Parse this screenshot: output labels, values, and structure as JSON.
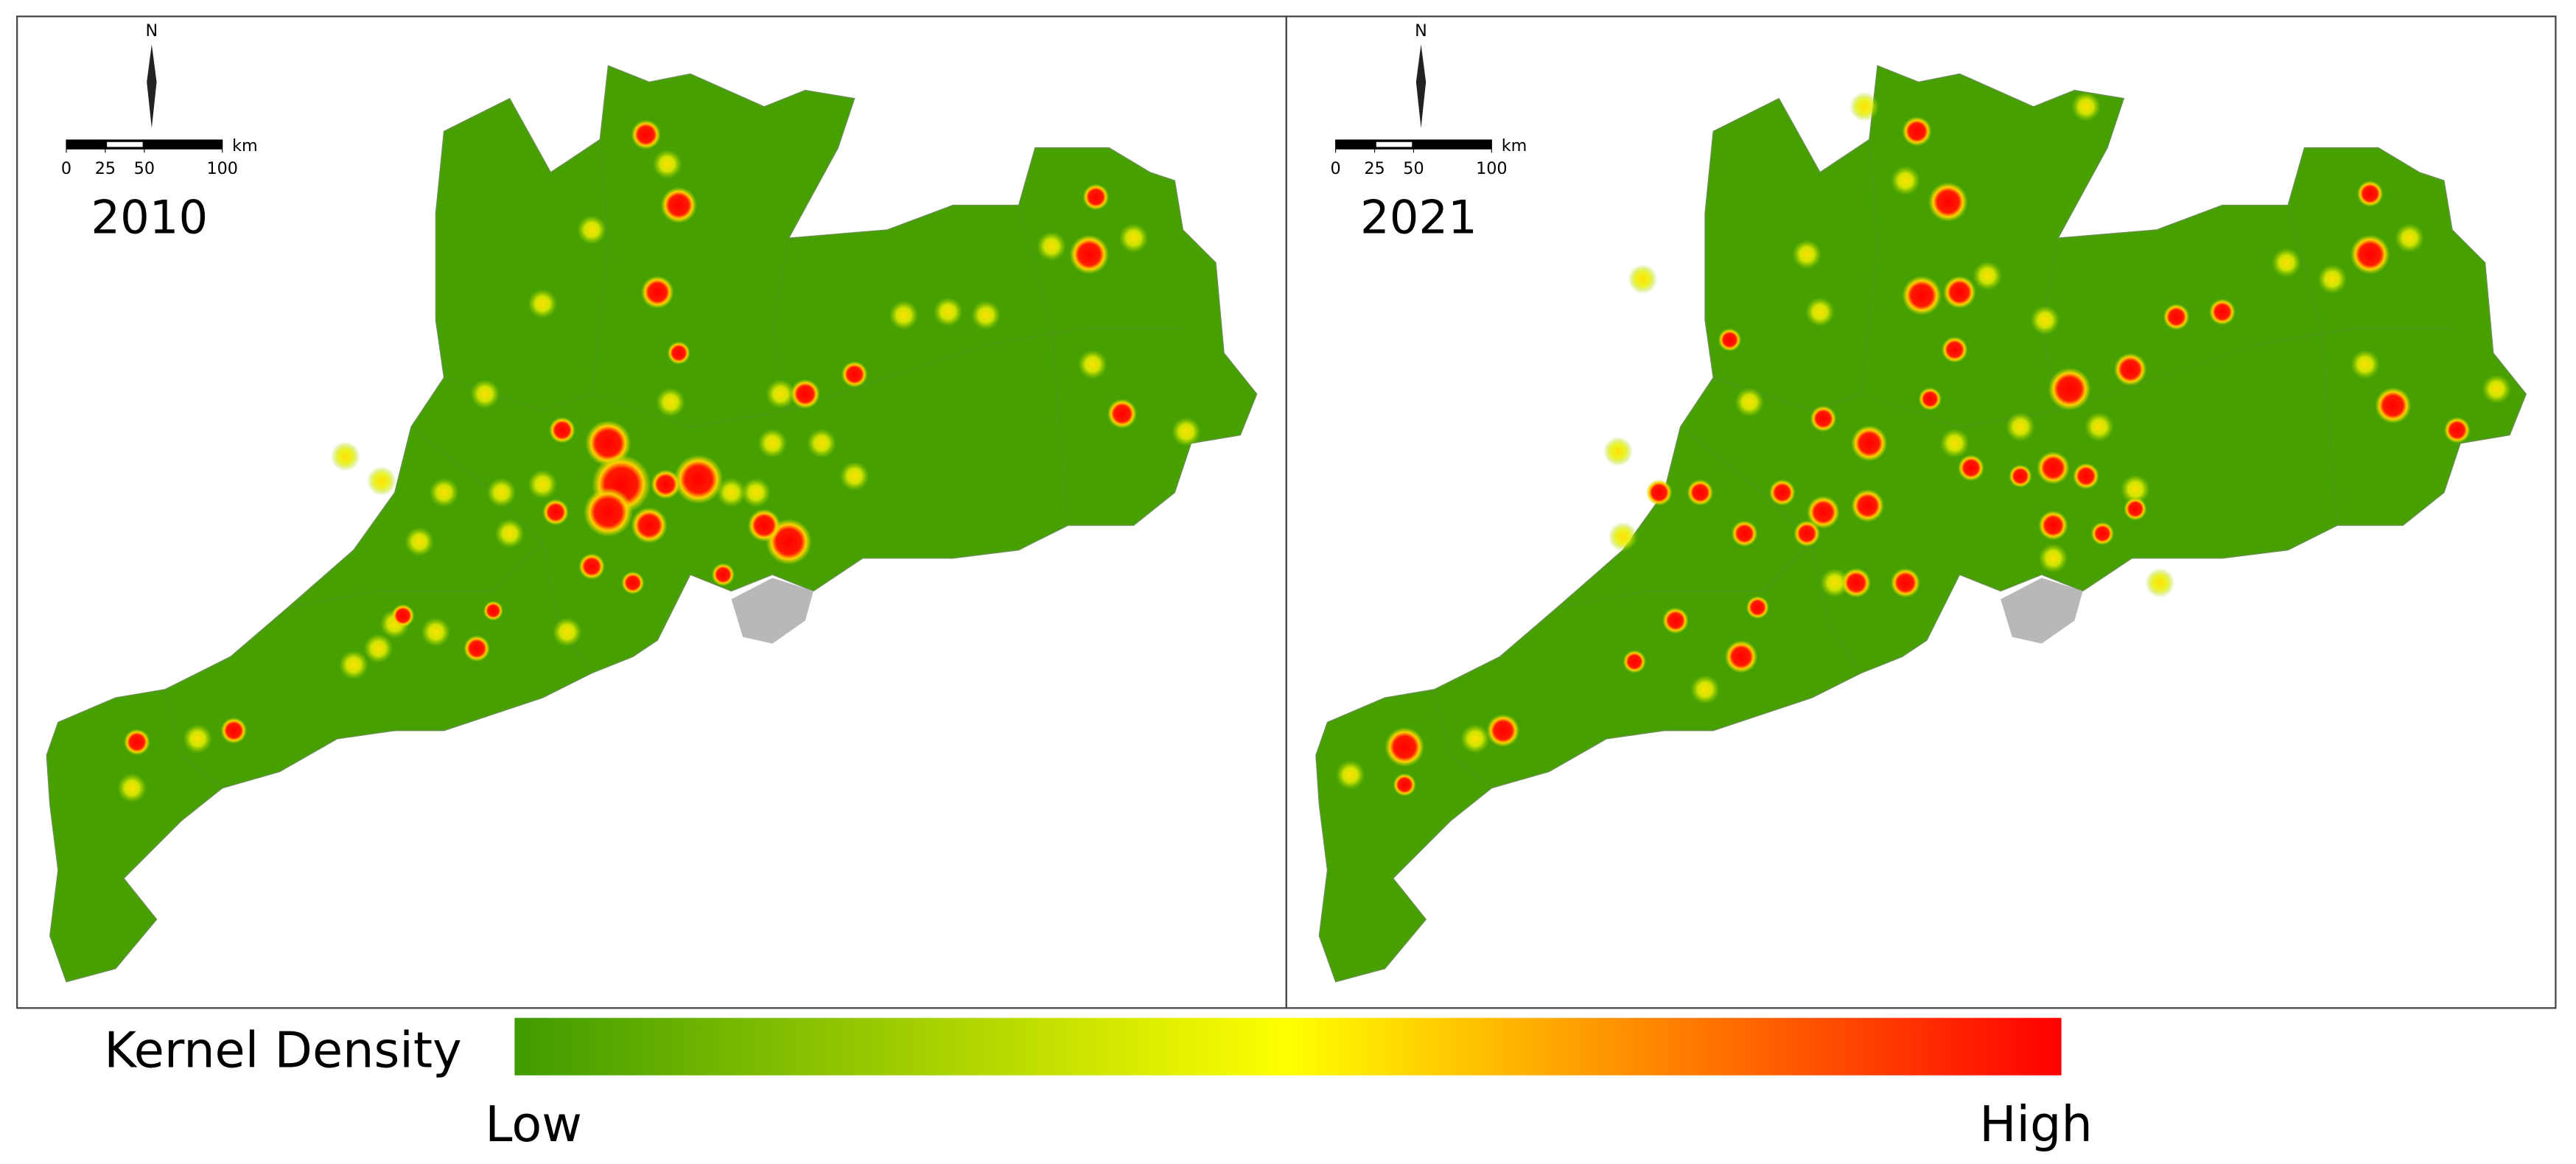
{
  "panels": [
    {
      "year": "2010",
      "north": "N",
      "unit": "km",
      "scale_ticks": [
        0,
        25,
        50,
        100
      ]
    },
    {
      "year": "2021",
      "north": "N",
      "unit": "km",
      "scale_ticks": [
        0,
        25,
        50,
        100
      ]
    }
  ],
  "legend": {
    "title": "Kernel Density",
    "low": "Low",
    "high": "High",
    "colors": [
      "#3f9b00",
      "#ffff00",
      "#ff0000"
    ]
  }
}
